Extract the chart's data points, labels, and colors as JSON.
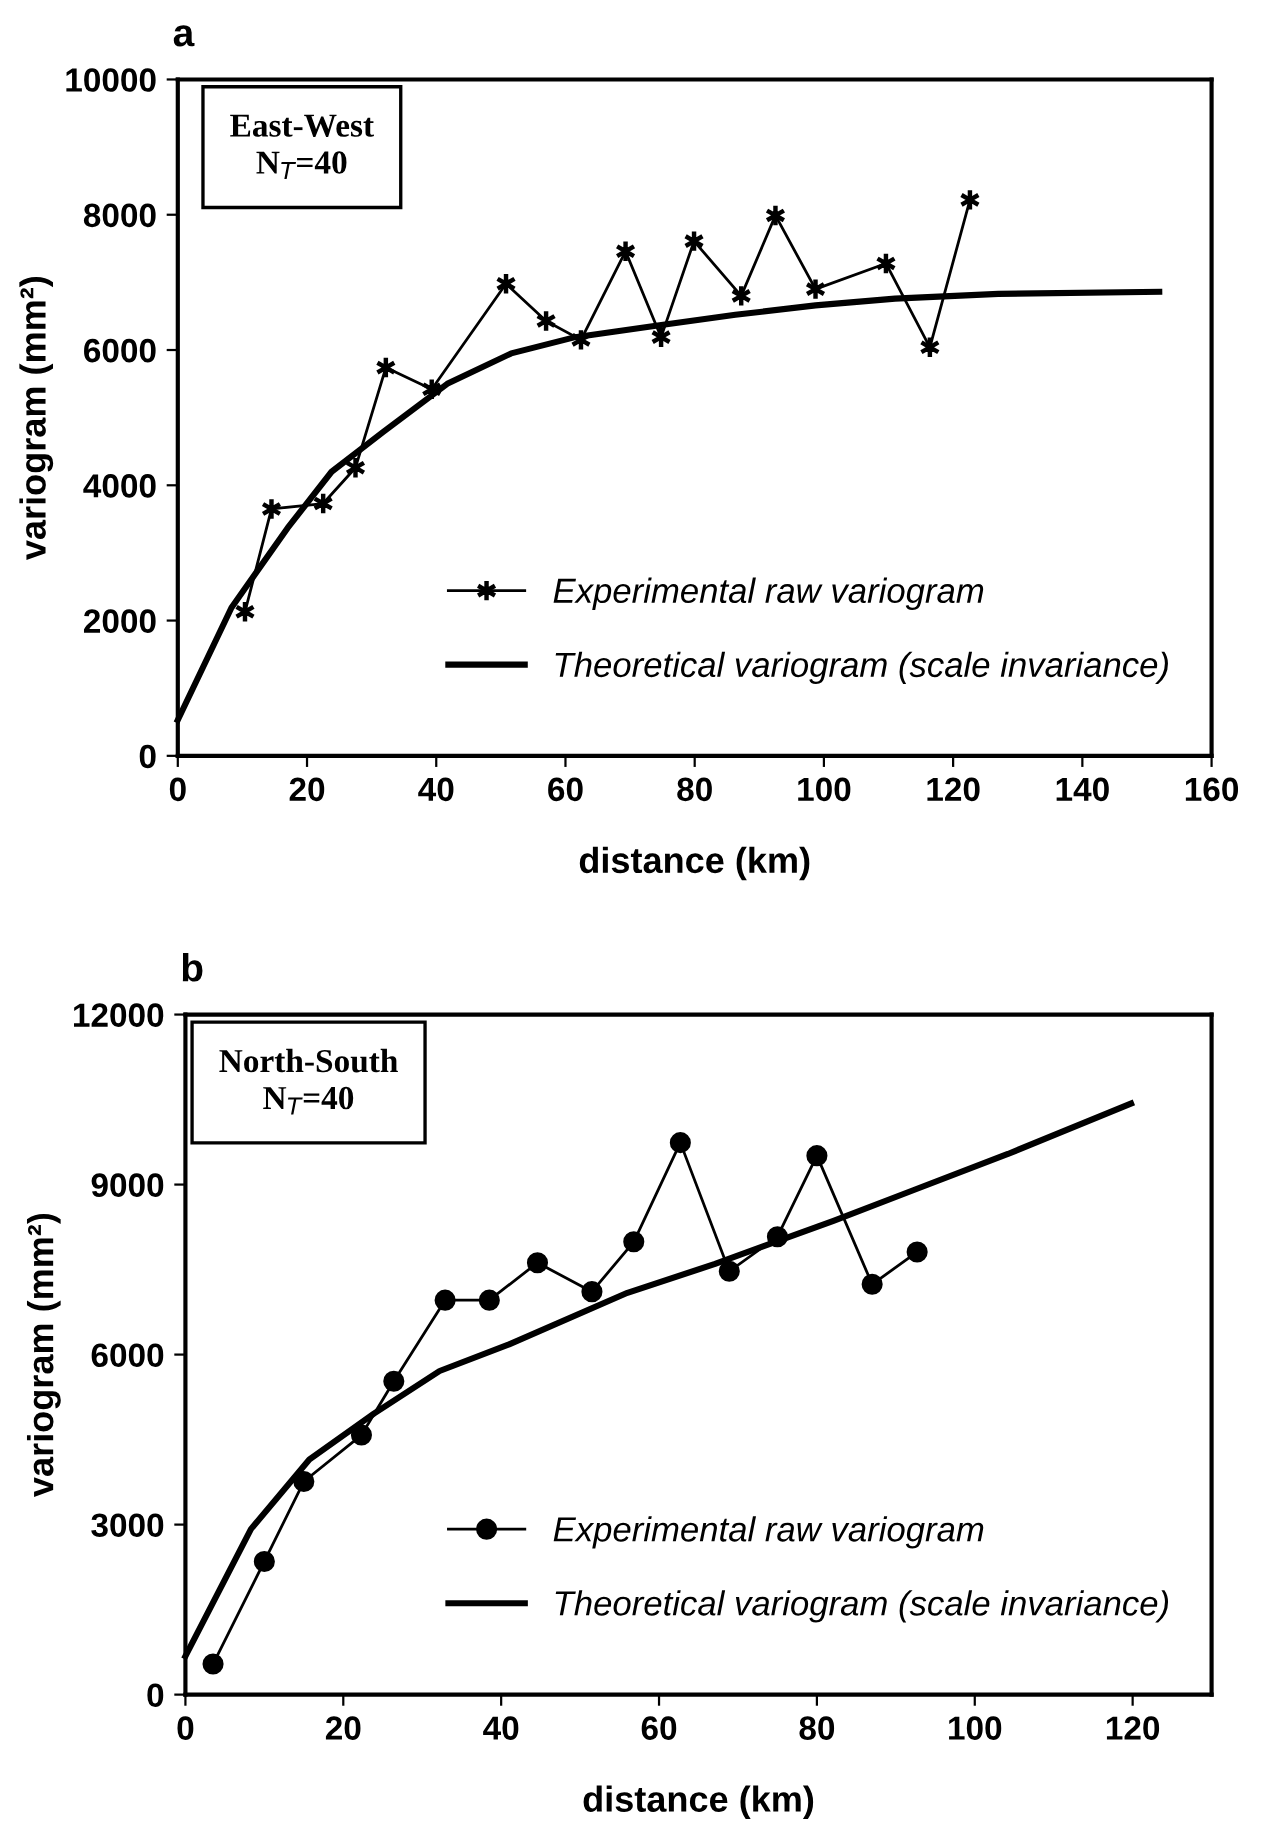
{
  "chart_data": [
    {
      "type": "line",
      "title": "a",
      "xlabel": "distance (km)",
      "ylabel": "variogram (mm²)",
      "annotations": [
        "East-West\nN$_{T}$=40"
      ],
      "xlim": [
        0,
        160
      ],
      "xticks": [
        0,
        20,
        40,
        60,
        80,
        100,
        120,
        140,
        160
      ],
      "ylim": [
        0,
        10000
      ],
      "yticks": [
        0,
        2000,
        4000,
        6000,
        8000,
        10000
      ],
      "grid": false,
      "legend": "bottom right",
      "series": [
        {
          "name": "Experimental raw variogram",
          "color": "#000000",
          "marker": "cross",
          "line_style": "solid",
          "x": [
            10.4,
            14.5,
            22.5,
            27.5,
            32.2,
            39.3,
            50.8,
            57.0,
            62.4,
            69.3,
            74.8,
            79.9,
            87.2,
            92.5,
            98.7,
            109.6,
            116.4,
            122.6
          ],
          "values": [
            2130,
            3650,
            3730,
            4260,
            5740,
            5420,
            6980,
            6430,
            6150,
            7460,
            6190,
            7610,
            6800,
            7990,
            6900,
            7280,
            6040,
            8220
          ]
        },
        {
          "name": "Theoretical variogram (scale invariance)",
          "color": "#000000",
          "marker": "none",
          "line_style": "solid",
          "x": [
            0,
            8.3,
            17,
            23.8,
            31.8,
            41.7,
            51.6,
            61.5,
            74,
            86.3,
            98.7,
            111,
            127,
            151.9
          ],
          "values": [
            530,
            2190,
            3370,
            4200,
            4790,
            5500,
            5950,
            6190,
            6360,
            6520,
            6660,
            6760,
            6830,
            6860
          ]
        }
      ]
    },
    {
      "type": "line",
      "title": "b",
      "xlabel": "distance (km)",
      "ylabel": "variogram (mm²)",
      "annotations": [
        "North-South\nN$_{T}$=40"
      ],
      "xlim": [
        0,
        130
      ],
      "xticks": [
        0,
        20,
        40,
        60,
        80,
        100,
        120
      ],
      "ylim": [
        0,
        12000
      ],
      "yticks": [
        0,
        3000,
        6000,
        9000,
        12000
      ],
      "grid": false,
      "legend": "bottom right",
      "series": [
        {
          "name": "Experimental raw variogram",
          "color": "#000000",
          "marker": "circle",
          "line_style": "solid",
          "x": [
            3.5,
            10.0,
            15.0,
            22.3,
            26.4,
            32.9,
            38.5,
            44.6,
            51.5,
            56.8,
            62.7,
            68.9,
            75.0,
            80.0,
            87.0,
            92.7
          ],
          "values": [
            540,
            2350,
            3760,
            4580,
            5530,
            6960,
            6960,
            7620,
            7110,
            7990,
            9740,
            7470,
            8080,
            9510,
            7240,
            7810
          ]
        },
        {
          "name": "Theoretical variogram (scale invariance)",
          "color": "#000000",
          "marker": "none",
          "line_style": "solid",
          "x": [
            0,
            8.3,
            15.7,
            23.9,
            32.2,
            41,
            56,
            67.1,
            82.1,
            92.2,
            104.2,
            119.8
          ],
          "values": [
            680,
            2920,
            4150,
            4960,
            5710,
            6180,
            7090,
            7600,
            8360,
            8900,
            9540,
            10430
          ]
        }
      ]
    }
  ]
}
